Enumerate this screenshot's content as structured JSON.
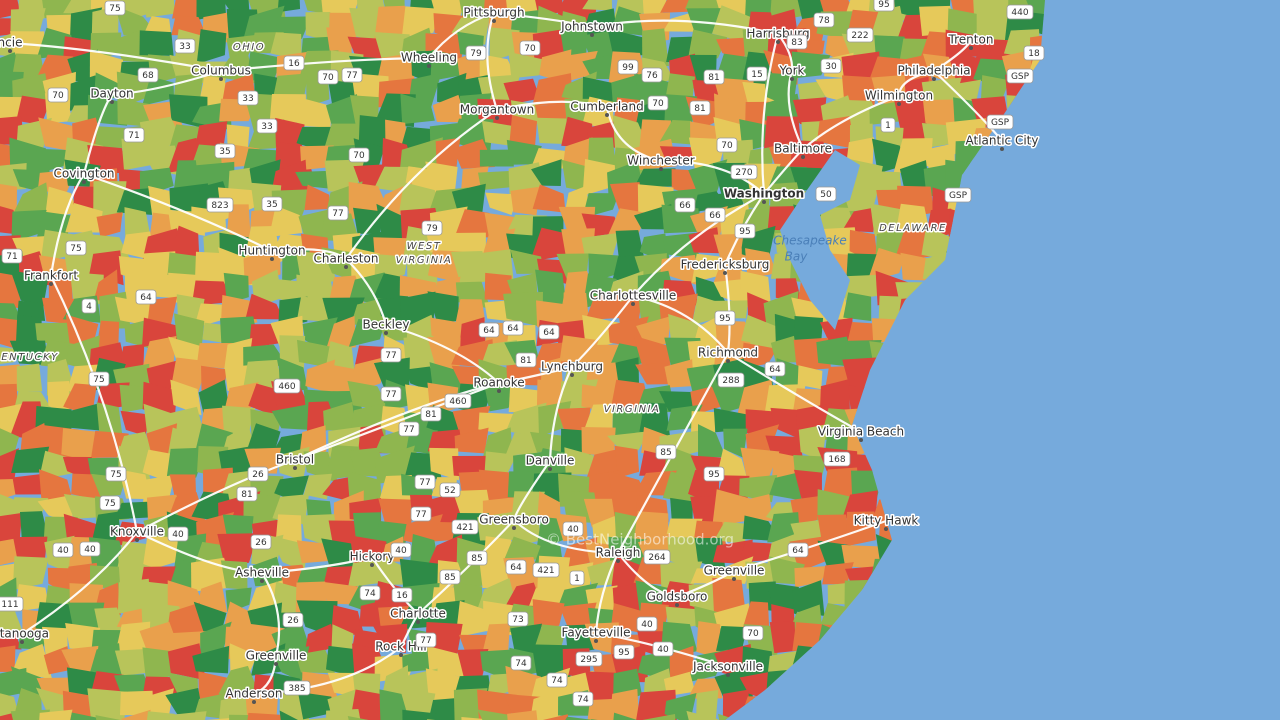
{
  "map": {
    "cities": [
      "Pittsburgh",
      "Johnstown",
      "Harrisburg",
      "Trenton",
      "Columbus",
      "Wheeling",
      "York",
      "Philadelphia",
      "Dayton",
      "Wilmington",
      "Morgantown",
      "Cumberland",
      "Atlantic City",
      "Baltimore",
      "Winchester",
      "Covington",
      "Washington",
      "Huntington",
      "Charleston",
      "Fredericksburg",
      "Frankfort",
      "Charlottesville",
      "Beckley",
      "Richmond",
      "Lynchburg",
      "Roanoke",
      "Virginia Beach",
      "Bristol",
      "Danville",
      "Greensboro",
      "Kitty Hawk",
      "Knoxville",
      "Raleigh",
      "Hickory",
      "Asheville",
      "Greenville",
      "Goldsboro",
      "Charlotte",
      "Fayetteville",
      "Rock Hill",
      "Jacksonville",
      "Greenville",
      "Anderson",
      "ncie",
      "ttanooga"
    ],
    "states": [
      "OHIO",
      "WEST",
      "VIRGINIA",
      "ENTUCKY",
      "VIRGINIA",
      "DELAWARE"
    ],
    "water": [
      "Chesapeake",
      "Bay"
    ],
    "watermark": "© BestNeighborhood.org",
    "shields": [
      "75",
      "33",
      "68",
      "16",
      "70",
      "77",
      "70",
      "33",
      "33",
      "71",
      "35",
      "70",
      "823",
      "35",
      "77",
      "79",
      "79",
      "70",
      "99",
      "76",
      "70",
      "81",
      "70",
      "81",
      "15",
      "83",
      "78",
      "222",
      "30",
      "95",
      "440",
      "18",
      "GSP",
      "GSP",
      "GSP",
      "1",
      "270",
      "50",
      "66",
      "66",
      "95",
      "95",
      "288",
      "64",
      "168",
      "71",
      "75",
      "64",
      "4",
      "75",
      "64",
      "64",
      "64",
      "81",
      "77",
      "460",
      "77",
      "81",
      "460",
      "77",
      "85",
      "95",
      "26",
      "81",
      "75",
      "75",
      "40",
      "40",
      "40",
      "26",
      "77",
      "52",
      "77",
      "421",
      "40",
      "85",
      "64",
      "421",
      "1",
      "264",
      "64",
      "85",
      "40",
      "16",
      "74",
      "77",
      "26",
      "73",
      "40",
      "40",
      "70",
      "95",
      "74",
      "74",
      "295",
      "74",
      "385",
      "111"
    ]
  }
}
